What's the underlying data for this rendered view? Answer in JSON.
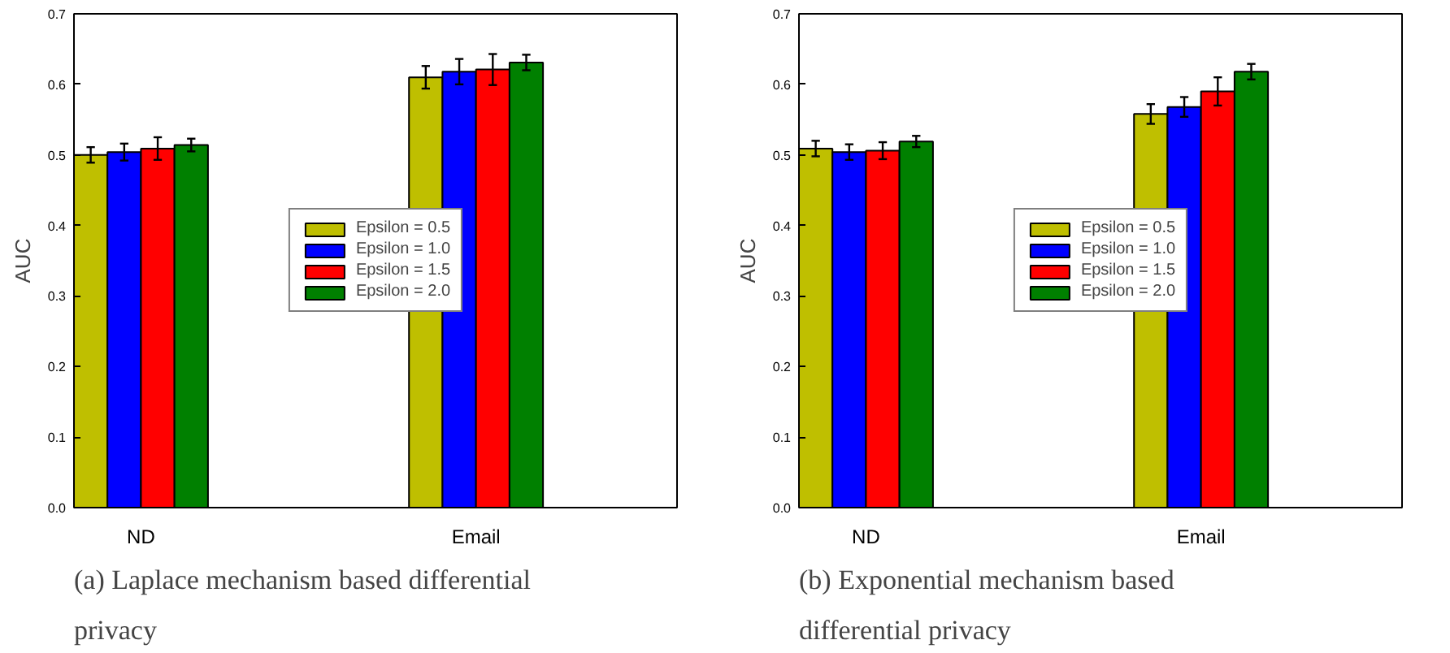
{
  "chart_data": [
    {
      "type": "bar",
      "title": "(a) Laplace mechanism based differential privacy",
      "ylabel": "AUC",
      "categories": [
        "ND",
        "Email"
      ],
      "ylim": [
        0,
        0.7
      ],
      "yticks": [
        {
          "value": 0,
          "label": "0.0"
        },
        0.1,
        0.2,
        0.3,
        0.4,
        0.5,
        0.6,
        0.7
      ],
      "legend": "center",
      "grid": false,
      "series": [
        {
          "name": "Epsilon = 0.5",
          "color": "#bfbf00",
          "values": [
            0.5,
            0.61
          ],
          "errors": [
            0.011,
            0.016
          ]
        },
        {
          "name": "Epsilon = 1.0",
          "color": "#0000ff",
          "values": [
            0.504,
            0.618
          ],
          "errors": [
            0.012,
            0.018
          ]
        },
        {
          "name": "Epsilon = 1.5",
          "color": "#ff0000",
          "values": [
            0.509,
            0.621
          ],
          "errors": [
            0.016,
            0.022
          ]
        },
        {
          "name": "Epsilon = 2.0",
          "color": "#008000",
          "values": [
            0.514,
            0.631
          ],
          "errors": [
            0.009,
            0.011
          ]
        }
      ]
    },
    {
      "type": "bar",
      "title": "(b) Exponential mechanism based differential privacy",
      "ylabel": "AUC",
      "categories": [
        "ND",
        "Email"
      ],
      "ylim": [
        0,
        0.7
      ],
      "yticks": [
        {
          "value": 0,
          "label": "0.0"
        },
        0.1,
        0.2,
        0.3,
        0.4,
        0.5,
        0.6,
        0.7
      ],
      "legend": "center",
      "grid": false,
      "series": [
        {
          "name": "Epsilon = 0.5",
          "color": "#bfbf00",
          "values": [
            0.509,
            0.558
          ],
          "errors": [
            0.011,
            0.014
          ]
        },
        {
          "name": "Epsilon = 1.0",
          "color": "#0000ff",
          "values": [
            0.504,
            0.568
          ],
          "errors": [
            0.011,
            0.014
          ]
        },
        {
          "name": "Epsilon = 1.5",
          "color": "#ff0000",
          "values": [
            0.506,
            0.59
          ],
          "errors": [
            0.012,
            0.02
          ]
        },
        {
          "name": "Epsilon = 2.0",
          "color": "#008000",
          "values": [
            0.519,
            0.618
          ],
          "errors": [
            0.008,
            0.011
          ]
        }
      ]
    }
  ]
}
